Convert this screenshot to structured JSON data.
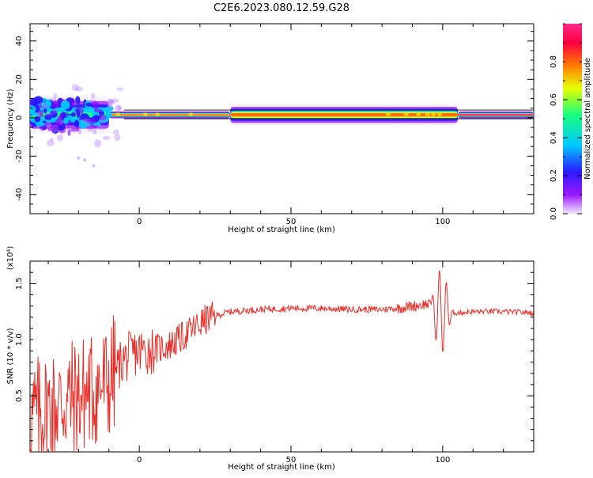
{
  "title": "C2E6.2023.080.12.59.G28",
  "chart_data": [
    {
      "type": "heatmap",
      "xlabel": "Height of straight line (km)",
      "ylabel": "Frequency (Hz)",
      "xlim": [
        -36,
        130
      ],
      "ylim": [
        -50,
        49
      ],
      "xticks": [
        "0",
        "50",
        "100"
      ],
      "yticks": [
        "-40",
        "-20",
        "0",
        "20",
        "40"
      ],
      "colorbar": {
        "label": "Normalized spectral amplitude",
        "range": [
          0,
          1
        ],
        "ticks": [
          "0.0",
          "0.2",
          "0.4",
          "0.6",
          "0.8"
        ],
        "colors": [
          "#f0e6ff",
          "#8a00ff",
          "#2a1aff",
          "#00c8ff",
          "#18ff80",
          "#e6ff00",
          "#ff6a00",
          "#ff0050",
          "#ff2080"
        ]
      },
      "band": {
        "center_hz": 1.5,
        "segments": [
          {
            "x": [
              -36,
              -10
            ],
            "halfwidth_hz": 6,
            "amplitude": 0.55
          },
          {
            "x": [
              -10,
              30
            ],
            "halfwidth_hz": 1.5,
            "amplitude": 0.8
          },
          {
            "x": [
              30,
              105
            ],
            "halfwidth_hz": 3.5,
            "amplitude": 0.75
          },
          {
            "x": [
              105,
              130
            ],
            "halfwidth_hz": 1.5,
            "amplitude": 0.9
          }
        ]
      }
    },
    {
      "type": "line",
      "xlabel": "Height of straight line (km)",
      "ylabel": "SNR (10 * v/v)",
      "scale_label": "(x10⁴)",
      "xlim": [
        -36,
        130
      ],
      "ylim": [
        0.0,
        1.7
      ],
      "xticks": [
        "0",
        "50",
        "100"
      ],
      "yticks": [
        "0.5",
        "1.0",
        "1.5"
      ],
      "color": "#e8302a",
      "series": [
        {
          "x": [
            -36,
            -30,
            -25,
            -20,
            -15,
            -10,
            -6,
            -2,
            2,
            6,
            10,
            14,
            18,
            22,
            26,
            30,
            40,
            50,
            60,
            70,
            80,
            85,
            90,
            95,
            98,
            100,
            102,
            105,
            110,
            120,
            130
          ],
          "values": [
            0.3,
            0.38,
            0.45,
            0.5,
            0.55,
            0.62,
            0.8,
            0.88,
            0.9,
            0.92,
            0.95,
            1.02,
            1.1,
            1.18,
            1.22,
            1.25,
            1.27,
            1.28,
            1.28,
            1.27,
            1.27,
            1.28,
            1.3,
            1.32,
            1.26,
            1.25,
            1.24,
            1.24,
            1.25,
            1.25,
            1.24
          ]
        }
      ]
    }
  ]
}
